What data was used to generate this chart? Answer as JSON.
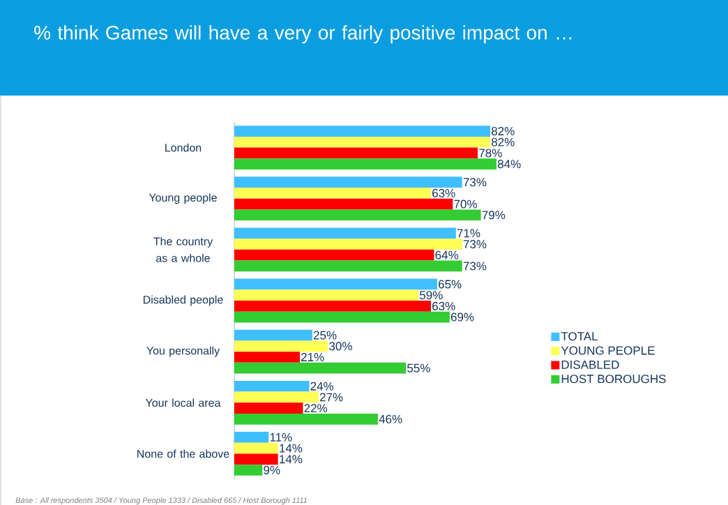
{
  "chart_data": {
    "type": "bar",
    "orientation": "horizontal",
    "title": "% think Games will have a very or fairly positive impact on …",
    "categories": [
      "London",
      "Young people",
      "The country as a whole",
      "Disabled people",
      "You personally",
      "Your local area",
      "None of the above"
    ],
    "series": [
      {
        "name": "TOTAL",
        "color": "#40bfff",
        "values": [
          82,
          73,
          71,
          65,
          25,
          24,
          11
        ],
        "value_labels": [
          "82%",
          "73%",
          "71%",
          "65%",
          "25%",
          "24%",
          "11%"
        ]
      },
      {
        "name": "YOUNG PEOPLE",
        "color": "#ffff55",
        "values": [
          82,
          63,
          73,
          59,
          30,
          27,
          14
        ],
        "value_labels": [
          "82%",
          "63%",
          "73%",
          "59%",
          "30%",
          "27%",
          "14%"
        ]
      },
      {
        "name": "DISABLED",
        "color": "#ff0000",
        "values": [
          78,
          70,
          64,
          63,
          21,
          22,
          14
        ],
        "value_labels": [
          "78%",
          "70%",
          "64%",
          "63%",
          "21%",
          "22%",
          "14%"
        ]
      },
      {
        "name": "HOST BOROUGHS",
        "color": "#33cc33",
        "values": [
          84,
          79,
          73,
          69,
          55,
          46,
          9
        ],
        "value_labels": [
          "84%",
          "79%",
          "73%",
          "69%",
          "55%",
          "46%",
          "9%"
        ]
      }
    ],
    "legend": "right",
    "annotations": [
      "Base : All respondents 3504 / Young People 1333 / Disabled 665 / Host Borough 1111"
    ]
  }
}
